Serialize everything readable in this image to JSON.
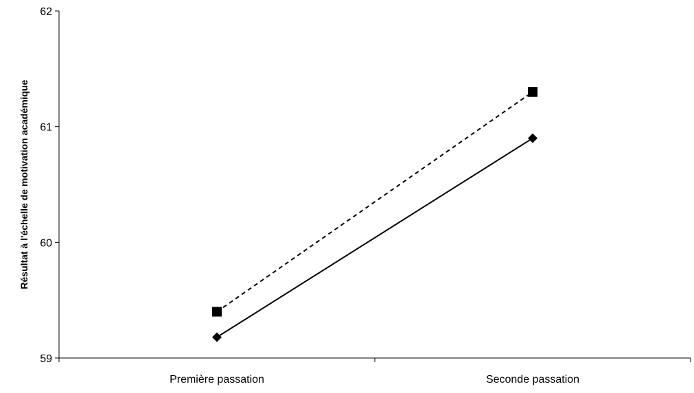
{
  "chart_data": {
    "type": "line",
    "title": "",
    "xlabel": "",
    "ylabel": "Résultat à l'échelle de motivation académique",
    "categories": [
      "Première passation",
      "Seconde passation"
    ],
    "ylim": [
      59,
      62
    ],
    "yticks": [
      "59",
      "60",
      "61",
      "62"
    ],
    "grid": false,
    "legend": "none",
    "series": [
      {
        "values": [
          59.4,
          61.3
        ],
        "line_style": "dashed",
        "marker": "square",
        "color": "#000000"
      },
      {
        "values": [
          59.18,
          60.9
        ],
        "line_style": "solid",
        "marker": "diamond",
        "color": "#000000"
      }
    ]
  }
}
